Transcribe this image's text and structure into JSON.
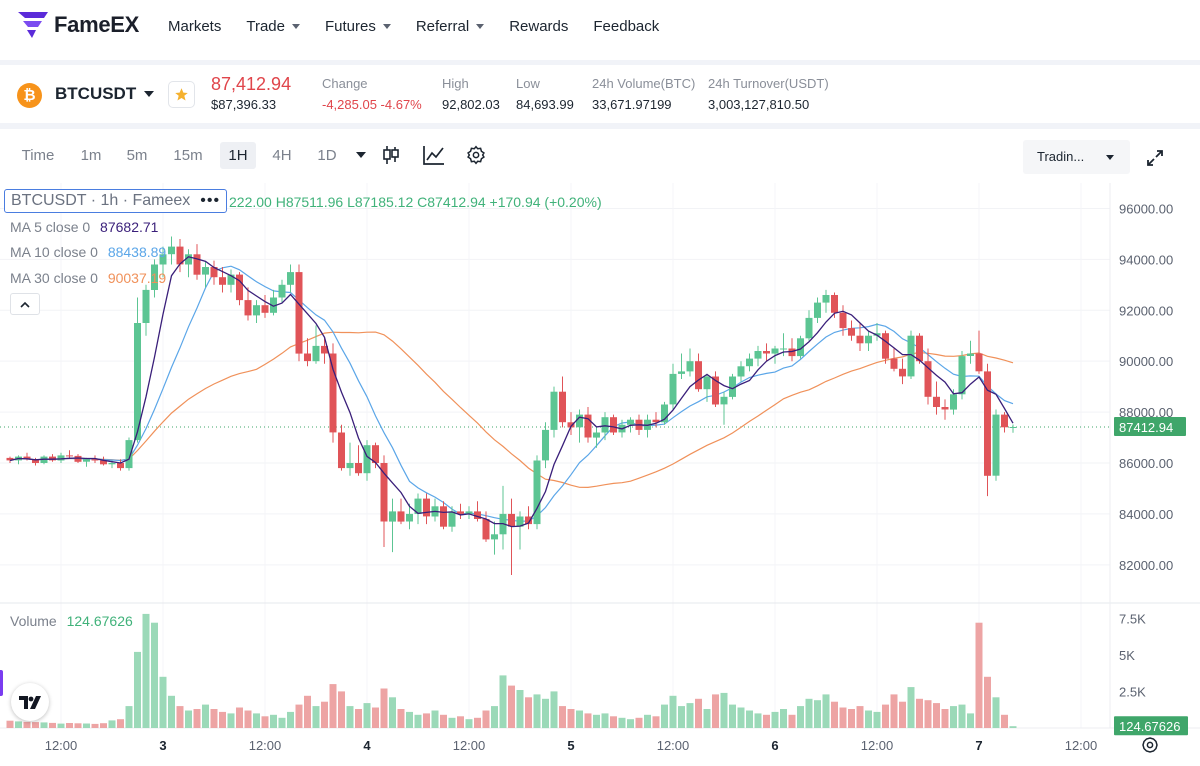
{
  "brand": {
    "name": "FameEX",
    "color": "#5b2bd9"
  },
  "nav": {
    "items": [
      {
        "label": "Markets",
        "dropdown": false
      },
      {
        "label": "Trade",
        "dropdown": true
      },
      {
        "label": "Futures",
        "dropdown": true
      },
      {
        "label": "Referral",
        "dropdown": true
      },
      {
        "label": "Rewards",
        "dropdown": false
      },
      {
        "label": "Feedback",
        "dropdown": false
      }
    ]
  },
  "ticker": {
    "coin_icon": "bitcoin-icon",
    "symbol": "BTCUSDT",
    "last_price": "87,412.94",
    "last_price_usd": "$87,396.33",
    "change_label": "Change",
    "change_value": "-4,285.05 -4.67%",
    "high_label": "High",
    "high_value": "92,802.03",
    "low_label": "Low",
    "low_value": "84,693.99",
    "volume_label": "24h Volume(BTC)",
    "volume_value": "33,671.97199",
    "turnover_label": "24h Turnover(USDT)",
    "turnover_value": "3,003,127,810.50"
  },
  "toolbar": {
    "timeframes": [
      "Time",
      "1m",
      "5m",
      "15m",
      "1H",
      "4H",
      "1D"
    ],
    "active_timeframe": "1H",
    "icons": [
      "candles-icon",
      "indicators-icon",
      "settings-icon"
    ],
    "view_select": "Tradin...",
    "fullscreen_icon": "fullscreen-icon"
  },
  "legend": {
    "symbol_title": "BTCUSDT · 1h · Fameex",
    "ohlc": "222.00  H87511.96  L87185.12  C87412.94  +170.94 (+0.20%)",
    "ma5_label": "MA 5 close 0",
    "ma5_value": "87682.71",
    "ma10_label": "MA 10 close 0",
    "ma10_value": "88438.89",
    "ma30_label": "MA 30 close 0",
    "ma30_value": "90037.19",
    "volume_label": "Volume",
    "volume_value": "124.67626"
  },
  "colors": {
    "up": "#5cc593",
    "down": "#e05458",
    "ma5": "#3a1f7a",
    "ma10": "#5ba6e8",
    "ma30": "#f0915a",
    "price_tag": "#3fa66a",
    "volume_up": "#9bd9b8",
    "volume_down": "#eda4a4"
  },
  "chart_data": {
    "type": "candlestick",
    "title": "BTCUSDT · 1h · Fameex",
    "price_axis_labels": [
      "96000.00",
      "94000.00",
      "92000.00",
      "90000.00",
      "88000.00",
      "86000.00",
      "84000.00",
      "82000.00"
    ],
    "price_ticks": [
      96000,
      94000,
      92000,
      90000,
      88000,
      86000,
      84000,
      82000
    ],
    "ylim": [
      80500,
      97000
    ],
    "current_price": 87412.94,
    "current_price_label": "87412.94",
    "volume_axis_labels": [
      "7.5K",
      "5K",
      "2.5K"
    ],
    "volume_ticks": [
      7500,
      5000,
      2500
    ],
    "volume_ylim": [
      0,
      8000
    ],
    "current_volume_label": "124.67626",
    "time_axis_labels": [
      "12:00",
      "3",
      "12:00",
      "4",
      "12:00",
      "5",
      "12:00",
      "6",
      "12:00",
      "7",
      "12:00"
    ],
    "time_axis_candle_index": [
      6,
      18,
      30,
      42,
      54,
      66,
      78,
      90,
      102,
      114,
      126
    ],
    "settings_icon": "gear-icon",
    "candles": [
      [
        86200,
        86250,
        86000,
        86100,
        500
      ],
      [
        86100,
        86300,
        85950,
        86250,
        450
      ],
      [
        86250,
        86400,
        86100,
        86150,
        420
      ],
      [
        86150,
        86200,
        85900,
        86000,
        400
      ],
      [
        86000,
        86300,
        85950,
        86250,
        380
      ],
      [
        86250,
        86350,
        86050,
        86100,
        350
      ],
      [
        86100,
        86400,
        86000,
        86300,
        300
      ],
      [
        86300,
        86500,
        86200,
        86280,
        340
      ],
      [
        86280,
        86350,
        86000,
        86050,
        320
      ],
      [
        86050,
        86200,
        85850,
        86150,
        310
      ],
      [
        86150,
        86300,
        86000,
        86100,
        280
      ],
      [
        86100,
        86250,
        85900,
        85950,
        330
      ],
      [
        85950,
        86100,
        85800,
        86000,
        520
      ],
      [
        86000,
        86150,
        85700,
        85800,
        600
      ],
      [
        85800,
        87000,
        85700,
        86900,
        1500
      ],
      [
        86900,
        92500,
        86800,
        91500,
        5200
      ],
      [
        91500,
        93000,
        91000,
        92800,
        7800
      ],
      [
        92800,
        94000,
        92500,
        93800,
        7200
      ],
      [
        93800,
        94500,
        93300,
        94200,
        3500
      ],
      [
        94200,
        94900,
        93800,
        94500,
        2200
      ],
      [
        94500,
        94800,
        93500,
        93800,
        1500
      ],
      [
        93800,
        94400,
        93300,
        94200,
        1200
      ],
      [
        94200,
        94600,
        93200,
        93400,
        1300
      ],
      [
        93400,
        93900,
        92900,
        93700,
        1600
      ],
      [
        93700,
        93950,
        93000,
        93300,
        1300
      ],
      [
        93300,
        93700,
        92700,
        93000,
        1100
      ],
      [
        93000,
        93600,
        92700,
        93400,
        1000
      ],
      [
        93400,
        93500,
        92200,
        92400,
        1400
      ],
      [
        92400,
        92900,
        91600,
        91800,
        1200
      ],
      [
        91800,
        92400,
        91500,
        92200,
        1000
      ],
      [
        92200,
        92600,
        91700,
        91900,
        800
      ],
      [
        91900,
        92800,
        91800,
        92500,
        900
      ],
      [
        92500,
        93200,
        92300,
        93000,
        700
      ],
      [
        93000,
        93800,
        92700,
        93500,
        1100
      ],
      [
        93500,
        93800,
        90000,
        90300,
        1600
      ],
      [
        90300,
        90900,
        89800,
        90000,
        2200
      ],
      [
        90000,
        91400,
        89900,
        90600,
        1500
      ],
      [
        90600,
        90900,
        89900,
        90300,
        1800
      ],
      [
        90300,
        90700,
        86800,
        87200,
        3000
      ],
      [
        87200,
        87500,
        85700,
        85800,
        2500
      ],
      [
        85800,
        86800,
        85500,
        86000,
        1500
      ],
      [
        86000,
        86700,
        85500,
        85600,
        1300
      ],
      [
        85600,
        86900,
        85300,
        86700,
        1700
      ],
      [
        86700,
        86800,
        85800,
        86000,
        1400
      ],
      [
        86000,
        86300,
        82700,
        83700,
        2700
      ],
      [
        83700,
        84600,
        82500,
        84100,
        2100
      ],
      [
        84100,
        84600,
        83600,
        83700,
        1300
      ],
      [
        83700,
        84400,
        83400,
        84000,
        1100
      ],
      [
        84000,
        84800,
        83600,
        84600,
        900
      ],
      [
        84600,
        84800,
        83600,
        83900,
        1000
      ],
      [
        83900,
        84600,
        83700,
        84300,
        1200
      ],
      [
        84300,
        84500,
        83400,
        83500,
        900
      ],
      [
        83500,
        84300,
        83300,
        84100,
        700
      ],
      [
        84100,
        84400,
        83800,
        84000,
        800
      ],
      [
        84000,
        84300,
        83800,
        84100,
        600
      ],
      [
        84100,
        84500,
        83700,
        83800,
        700
      ],
      [
        83800,
        84100,
        82900,
        83000,
        1200
      ],
      [
        83000,
        83700,
        82400,
        83200,
        1500
      ],
      [
        83200,
        85100,
        82600,
        84000,
        3600
      ],
      [
        84000,
        84600,
        81600,
        83500,
        2900
      ],
      [
        83500,
        84100,
        82600,
        83900,
        2600
      ],
      [
        83900,
        84300,
        83400,
        83600,
        2100
      ],
      [
        83600,
        86300,
        83400,
        86100,
        2300
      ],
      [
        86100,
        87600,
        85800,
        87300,
        2000
      ],
      [
        87300,
        89000,
        87000,
        88800,
        2500
      ],
      [
        88800,
        89400,
        87400,
        87600,
        1500
      ],
      [
        87600,
        88000,
        87100,
        87400,
        1300
      ],
      [
        87400,
        88100,
        86800,
        87900,
        1200
      ],
      [
        87900,
        88200,
        86800,
        87000,
        1000
      ],
      [
        87000,
        87400,
        86600,
        87200,
        900
      ],
      [
        87200,
        88000,
        86900,
        87800,
        1000
      ],
      [
        87800,
        87900,
        87100,
        87200,
        800
      ],
      [
        87200,
        87700,
        87000,
        87500,
        700
      ],
      [
        87500,
        87800,
        87200,
        87700,
        600
      ],
      [
        87700,
        87900,
        87100,
        87300,
        700
      ],
      [
        87300,
        87900,
        87000,
        87700,
        900
      ],
      [
        87700,
        88000,
        87400,
        87600,
        800
      ],
      [
        87600,
        88400,
        87500,
        88300,
        1600
      ],
      [
        88300,
        89900,
        88100,
        89500,
        2200
      ],
      [
        89500,
        90300,
        89300,
        89600,
        1500
      ],
      [
        89600,
        90500,
        89400,
        90000,
        1700
      ],
      [
        90000,
        90300,
        88800,
        88900,
        2000
      ],
      [
        88900,
        89500,
        88400,
        89400,
        1300
      ],
      [
        89400,
        89600,
        88200,
        88300,
        2300
      ],
      [
        88300,
        88800,
        87500,
        88600,
        2400
      ],
      [
        88600,
        89500,
        88500,
        89400,
        1600
      ],
      [
        89400,
        90000,
        89200,
        89800,
        1400
      ],
      [
        89800,
        90300,
        89600,
        90100,
        1200
      ],
      [
        90100,
        90600,
        89800,
        90400,
        1000
      ],
      [
        90400,
        90700,
        90000,
        90300,
        900
      ],
      [
        90300,
        90600,
        89900,
        90500,
        1100
      ],
      [
        90500,
        91100,
        90200,
        90500,
        1300
      ],
      [
        90500,
        90900,
        90000,
        90200,
        900
      ],
      [
        90200,
        91000,
        90100,
        90900,
        1500
      ],
      [
        90900,
        92000,
        90800,
        91700,
        2000
      ],
      [
        91700,
        92500,
        91500,
        92300,
        1900
      ],
      [
        92300,
        92800,
        91900,
        92600,
        2300
      ],
      [
        92600,
        92700,
        91700,
        91900,
        1800
      ],
      [
        91900,
        92200,
        91000,
        91300,
        1400
      ],
      [
        91300,
        91600,
        90800,
        91000,
        1300
      ],
      [
        91000,
        91500,
        90400,
        90700,
        1500
      ],
      [
        90700,
        91200,
        90400,
        91000,
        1200
      ],
      [
        91000,
        91500,
        90800,
        91100,
        1100
      ],
      [
        91100,
        91200,
        89900,
        90100,
        1600
      ],
      [
        90100,
        90500,
        89600,
        89700,
        2300
      ],
      [
        89700,
        90100,
        89100,
        89400,
        1800
      ],
      [
        89400,
        91200,
        89300,
        91000,
        2800
      ],
      [
        91000,
        91100,
        89900,
        90000,
        2000
      ],
      [
        90000,
        90500,
        88300,
        88600,
        1900
      ],
      [
        88600,
        89200,
        87900,
        88200,
        1700
      ],
      [
        88200,
        88500,
        87700,
        88100,
        1300
      ],
      [
        88100,
        88900,
        87900,
        88700,
        1500
      ],
      [
        88700,
        90400,
        88500,
        90200,
        1600
      ],
      [
        90200,
        90800,
        89900,
        90300,
        1000
      ],
      [
        90300,
        91200,
        89500,
        89600,
        7200
      ],
      [
        89600,
        89900,
        84700,
        85500,
        3500
      ],
      [
        85500,
        88100,
        85300,
        87900,
        2100
      ],
      [
        87900,
        88000,
        87200,
        87400,
        900
      ],
      [
        87400,
        87511,
        87185,
        87413,
        125
      ]
    ]
  }
}
